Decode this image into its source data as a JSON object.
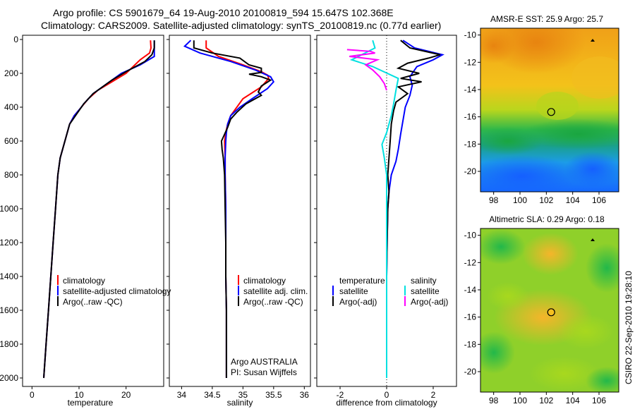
{
  "header": {
    "line1": "Argo profile: CS 5901679_64 19-Aug-2010 20100819_594 15.647S 102.368E",
    "line2": "Climatology: CARS2009. Satellite-adjusted climatology: synTS_20100819.nc (0.77d earlier)"
  },
  "colors": {
    "climatology": "#ff0000",
    "satellite": "#0000ff",
    "argo": "#000000",
    "satellite_light": "#00e0e0",
    "argo_adj": "#ff00ff"
  },
  "chart_data": [
    {
      "type": "line",
      "name": "temperature-profile",
      "xlabel": "temperature",
      "ylabel": "",
      "xlim": [
        -2,
        28
      ],
      "ylim": [
        2050,
        0
      ],
      "xticks": [
        0,
        10,
        20
      ],
      "yticks": [
        0,
        200,
        400,
        600,
        800,
        1000,
        1200,
        1400,
        1600,
        1800,
        2000
      ],
      "legend": [
        "climatology",
        "satellite-adjusted climatology",
        "Argo(..raw -QC)"
      ],
      "series": [
        {
          "name": "climatology",
          "color": "#ff0000",
          "points": [
            [
              25.2,
              5
            ],
            [
              25.3,
              50
            ],
            [
              25.0,
              80
            ],
            [
              23,
              120
            ],
            [
              20,
              200
            ],
            [
              17,
              250
            ],
            [
              14,
              300
            ],
            [
              12,
              350
            ],
            [
              10.5,
              400
            ],
            [
              9,
              450
            ],
            [
              8,
              500
            ],
            [
              7,
              600
            ],
            [
              6,
              700
            ],
            [
              5.5,
              800
            ],
            [
              5,
              1000
            ],
            [
              4.5,
              1200
            ],
            [
              4,
              1400
            ],
            [
              3.5,
              1600
            ],
            [
              3,
              1800
            ],
            [
              2.5,
              2000
            ]
          ]
        },
        {
          "name": "satellite",
          "color": "#0000ff",
          "points": [
            [
              26,
              5
            ],
            [
              26,
              50
            ],
            [
              26,
              100
            ],
            [
              23,
              150
            ],
            [
              19,
              200
            ],
            [
              15,
              280
            ],
            [
              13,
              320
            ],
            [
              11,
              380
            ],
            [
              10.5,
              400
            ],
            [
              9,
              450
            ],
            [
              8,
              500
            ],
            [
              7,
              600
            ],
            [
              6,
              700
            ],
            [
              5.5,
              800
            ],
            [
              5,
              1000
            ],
            [
              4.5,
              1200
            ],
            [
              4,
              1400
            ],
            [
              3.5,
              1600
            ],
            [
              3,
              1800
            ],
            [
              2.5,
              2000
            ]
          ]
        },
        {
          "name": "Argo",
          "color": "#000000",
          "points": [
            [
              26,
              5
            ],
            [
              26,
              50
            ],
            [
              25.5,
              90
            ],
            [
              24,
              130
            ],
            [
              20,
              190
            ],
            [
              17,
              240
            ],
            [
              15,
              280
            ],
            [
              13,
              320
            ],
            [
              11,
              380
            ],
            [
              10,
              420
            ],
            [
              9,
              460
            ],
            [
              8,
              500
            ],
            [
              7,
              600
            ],
            [
              6,
              700
            ],
            [
              5.5,
              800
            ],
            [
              5,
              1000
            ],
            [
              4.5,
              1200
            ],
            [
              4,
              1400
            ],
            [
              3.5,
              1600
            ],
            [
              3,
              1800
            ],
            [
              2.5,
              2000
            ]
          ]
        }
      ]
    },
    {
      "type": "line",
      "name": "salinity-profile",
      "xlabel": "salinity",
      "xlim": [
        33.8,
        36.1
      ],
      "ylim": [
        2050,
        0
      ],
      "xticks": [
        34,
        34.5,
        35,
        35.5,
        36
      ],
      "legend": [
        "climatology",
        "satellite adj. clim.",
        "Argo(..raw -QC)"
      ],
      "annotation": [
        "Argo AUSTRALIA",
        "PI: Susan Wijffels"
      ],
      "series": [
        {
          "name": "climatology",
          "color": "#ff0000",
          "points": [
            [
              34.4,
              5
            ],
            [
              34.4,
              50
            ],
            [
              34.6,
              100
            ],
            [
              35.0,
              150
            ],
            [
              35.3,
              190
            ],
            [
              35.4,
              210
            ],
            [
              35.42,
              230
            ],
            [
              35.3,
              280
            ],
            [
              35.0,
              350
            ],
            [
              34.9,
              400
            ],
            [
              34.8,
              450
            ],
            [
              34.75,
              500
            ],
            [
              34.72,
              550
            ],
            [
              34.7,
              600
            ],
            [
              34.71,
              700
            ],
            [
              34.71,
              800
            ],
            [
              34.72,
              1000
            ],
            [
              34.72,
              1200
            ],
            [
              34.72,
              1400
            ],
            [
              34.73,
              1600
            ],
            [
              34.73,
              1800
            ],
            [
              34.73,
              2000
            ]
          ]
        },
        {
          "name": "satellite",
          "color": "#0000ff",
          "points": [
            [
              34.15,
              5
            ],
            [
              34.05,
              40
            ],
            [
              34.3,
              80
            ],
            [
              34.8,
              130
            ],
            [
              35.2,
              180
            ],
            [
              35.45,
              220
            ],
            [
              35.5,
              250
            ],
            [
              35.4,
              290
            ],
            [
              35.15,
              350
            ],
            [
              34.95,
              400
            ],
            [
              34.8,
              450
            ],
            [
              34.75,
              500
            ],
            [
              34.73,
              550
            ],
            [
              34.72,
              600
            ],
            [
              34.71,
              700
            ],
            [
              34.71,
              800
            ],
            [
              34.72,
              1000
            ],
            [
              34.72,
              1200
            ],
            [
              34.72,
              1400
            ],
            [
              34.73,
              1600
            ],
            [
              34.73,
              1800
            ],
            [
              34.73,
              2000
            ]
          ]
        },
        {
          "name": "Argo",
          "color": "#000000",
          "points": [
            [
              34.2,
              5
            ],
            [
              34.2,
              50
            ],
            [
              34.5,
              80
            ],
            [
              34.95,
              110
            ],
            [
              35.1,
              150
            ],
            [
              35.3,
              170
            ],
            [
              35.3,
              195
            ],
            [
              35.1,
              205
            ],
            [
              35.3,
              220
            ],
            [
              35.45,
              240
            ],
            [
              35.3,
              275
            ],
            [
              35.25,
              310
            ],
            [
              35.3,
              330
            ],
            [
              35.05,
              380
            ],
            [
              34.9,
              430
            ],
            [
              34.8,
              470
            ],
            [
              34.75,
              520
            ],
            [
              34.7,
              560
            ],
            [
              34.65,
              600
            ],
            [
              34.66,
              650
            ],
            [
              34.68,
              700
            ],
            [
              34.7,
              800
            ],
            [
              34.71,
              1000
            ],
            [
              34.72,
              1200
            ],
            [
              34.72,
              1400
            ],
            [
              34.73,
              1600
            ],
            [
              34.73,
              1800
            ],
            [
              34.73,
              2000
            ]
          ]
        }
      ]
    },
    {
      "type": "line",
      "name": "difference-from-climatology",
      "xlabel": "difference from climatology",
      "xlim": [
        -3,
        3
      ],
      "ylim": [
        2050,
        0
      ],
      "xticks": [
        -2,
        0,
        2
      ],
      "legend_temperature_title": "temperature",
      "legend_salinity_title": "salinity",
      "legend": [
        "satellite",
        "Argo(-adj)",
        "satellite",
        "Argo(-adj)"
      ],
      "series": [
        {
          "name": "temperature satellite",
          "color": "#0000ff",
          "points": [
            [
              0.7,
              5
            ],
            [
              1.2,
              50
            ],
            [
              2.4,
              90
            ],
            [
              2.0,
              120
            ],
            [
              1.3,
              160
            ],
            [
              1.0,
              220
            ],
            [
              1.1,
              270
            ],
            [
              1.0,
              330
            ],
            [
              0.8,
              400
            ],
            [
              0.7,
              480
            ],
            [
              0.6,
              560
            ],
            [
              0.5,
              650
            ],
            [
              0.4,
              720
            ],
            [
              0.2,
              800
            ],
            [
              0.1,
              900
            ],
            [
              0.05,
              1000
            ],
            [
              0.02,
              1200
            ],
            [
              0.0,
              1400
            ],
            [
              0.0,
              1600
            ],
            [
              0.0,
              1800
            ],
            [
              0.0,
              2000
            ]
          ]
        },
        {
          "name": "temperature Argo",
          "color": "#000000",
          "points": [
            [
              0.6,
              5
            ],
            [
              1.0,
              50
            ],
            [
              2.3,
              90
            ],
            [
              1.8,
              110
            ],
            [
              0.9,
              140
            ],
            [
              0.5,
              170
            ],
            [
              1.4,
              200
            ],
            [
              0.6,
              230
            ],
            [
              1.5,
              250
            ],
            [
              0.5,
              280
            ],
            [
              0.9,
              320
            ],
            [
              0.4,
              370
            ],
            [
              0.3,
              420
            ],
            [
              0.2,
              500
            ],
            [
              0.15,
              600
            ],
            [
              0.1,
              700
            ],
            [
              0.05,
              800
            ],
            [
              0.1,
              900
            ],
            [
              0.05,
              1000
            ],
            [
              0.02,
              1200
            ],
            [
              0.0,
              1400
            ],
            [
              0.0,
              1600
            ],
            [
              0.0,
              1800
            ],
            [
              0.0,
              2000
            ]
          ]
        },
        {
          "name": "salinity satellite",
          "color": "#00e0e0",
          "points": [
            [
              -0.6,
              5
            ],
            [
              -0.5,
              50
            ],
            [
              -1.5,
              120
            ],
            [
              -0.6,
              160
            ],
            [
              0.5,
              230
            ],
            [
              0.4,
              300
            ],
            [
              0.3,
              380
            ],
            [
              0.2,
              450
            ],
            [
              0.0,
              550
            ],
            [
              -0.2,
              620
            ],
            [
              -0.1,
              700
            ],
            [
              0.0,
              800
            ],
            [
              0.0,
              1000
            ],
            [
              0.0,
              1200
            ],
            [
              0.0,
              1400
            ],
            [
              0.0,
              1600
            ],
            [
              0.0,
              1800
            ],
            [
              0.0,
              2000
            ]
          ]
        },
        {
          "name": "salinity Argo",
          "color": "#ff00ff",
          "points": [
            [
              -1.7,
              60
            ],
            [
              -0.7,
              70
            ],
            [
              -0.5,
              80
            ],
            [
              -1.6,
              100
            ],
            [
              -0.4,
              120
            ],
            [
              -0.9,
              150
            ],
            [
              -0.6,
              180
            ],
            [
              -0.3,
              220
            ],
            [
              -0.1,
              260
            ],
            [
              0.0,
              300
            ]
          ]
        }
      ]
    },
    {
      "type": "heatmap",
      "name": "amsr-sst-map",
      "title": "AMSR-E SST: 25.9  Argo: 25.7",
      "xlim": [
        97,
        107.5
      ],
      "ylim": [
        -21.5,
        -9.5
      ],
      "xticks": [
        98,
        100,
        102,
        104,
        106
      ],
      "yticks": [
        -10,
        -12,
        -14,
        -16,
        -18,
        -20
      ],
      "float_position": [
        102.368,
        -15.647
      ]
    },
    {
      "type": "heatmap",
      "name": "altimetric-sla-map",
      "title": "Altimetric SLA: 0.29  Argo: 0.18",
      "xlim": [
        97,
        107.5
      ],
      "ylim": [
        -21.5,
        -9.5
      ],
      "xticks": [
        98,
        100,
        102,
        104,
        106
      ],
      "yticks": [
        -10,
        -12,
        -14,
        -16,
        -18,
        -20
      ],
      "float_position": [
        102.368,
        -15.647
      ]
    }
  ],
  "footer": {
    "stamp": "CSIRO 22-Sep-2010 19:28:10"
  }
}
